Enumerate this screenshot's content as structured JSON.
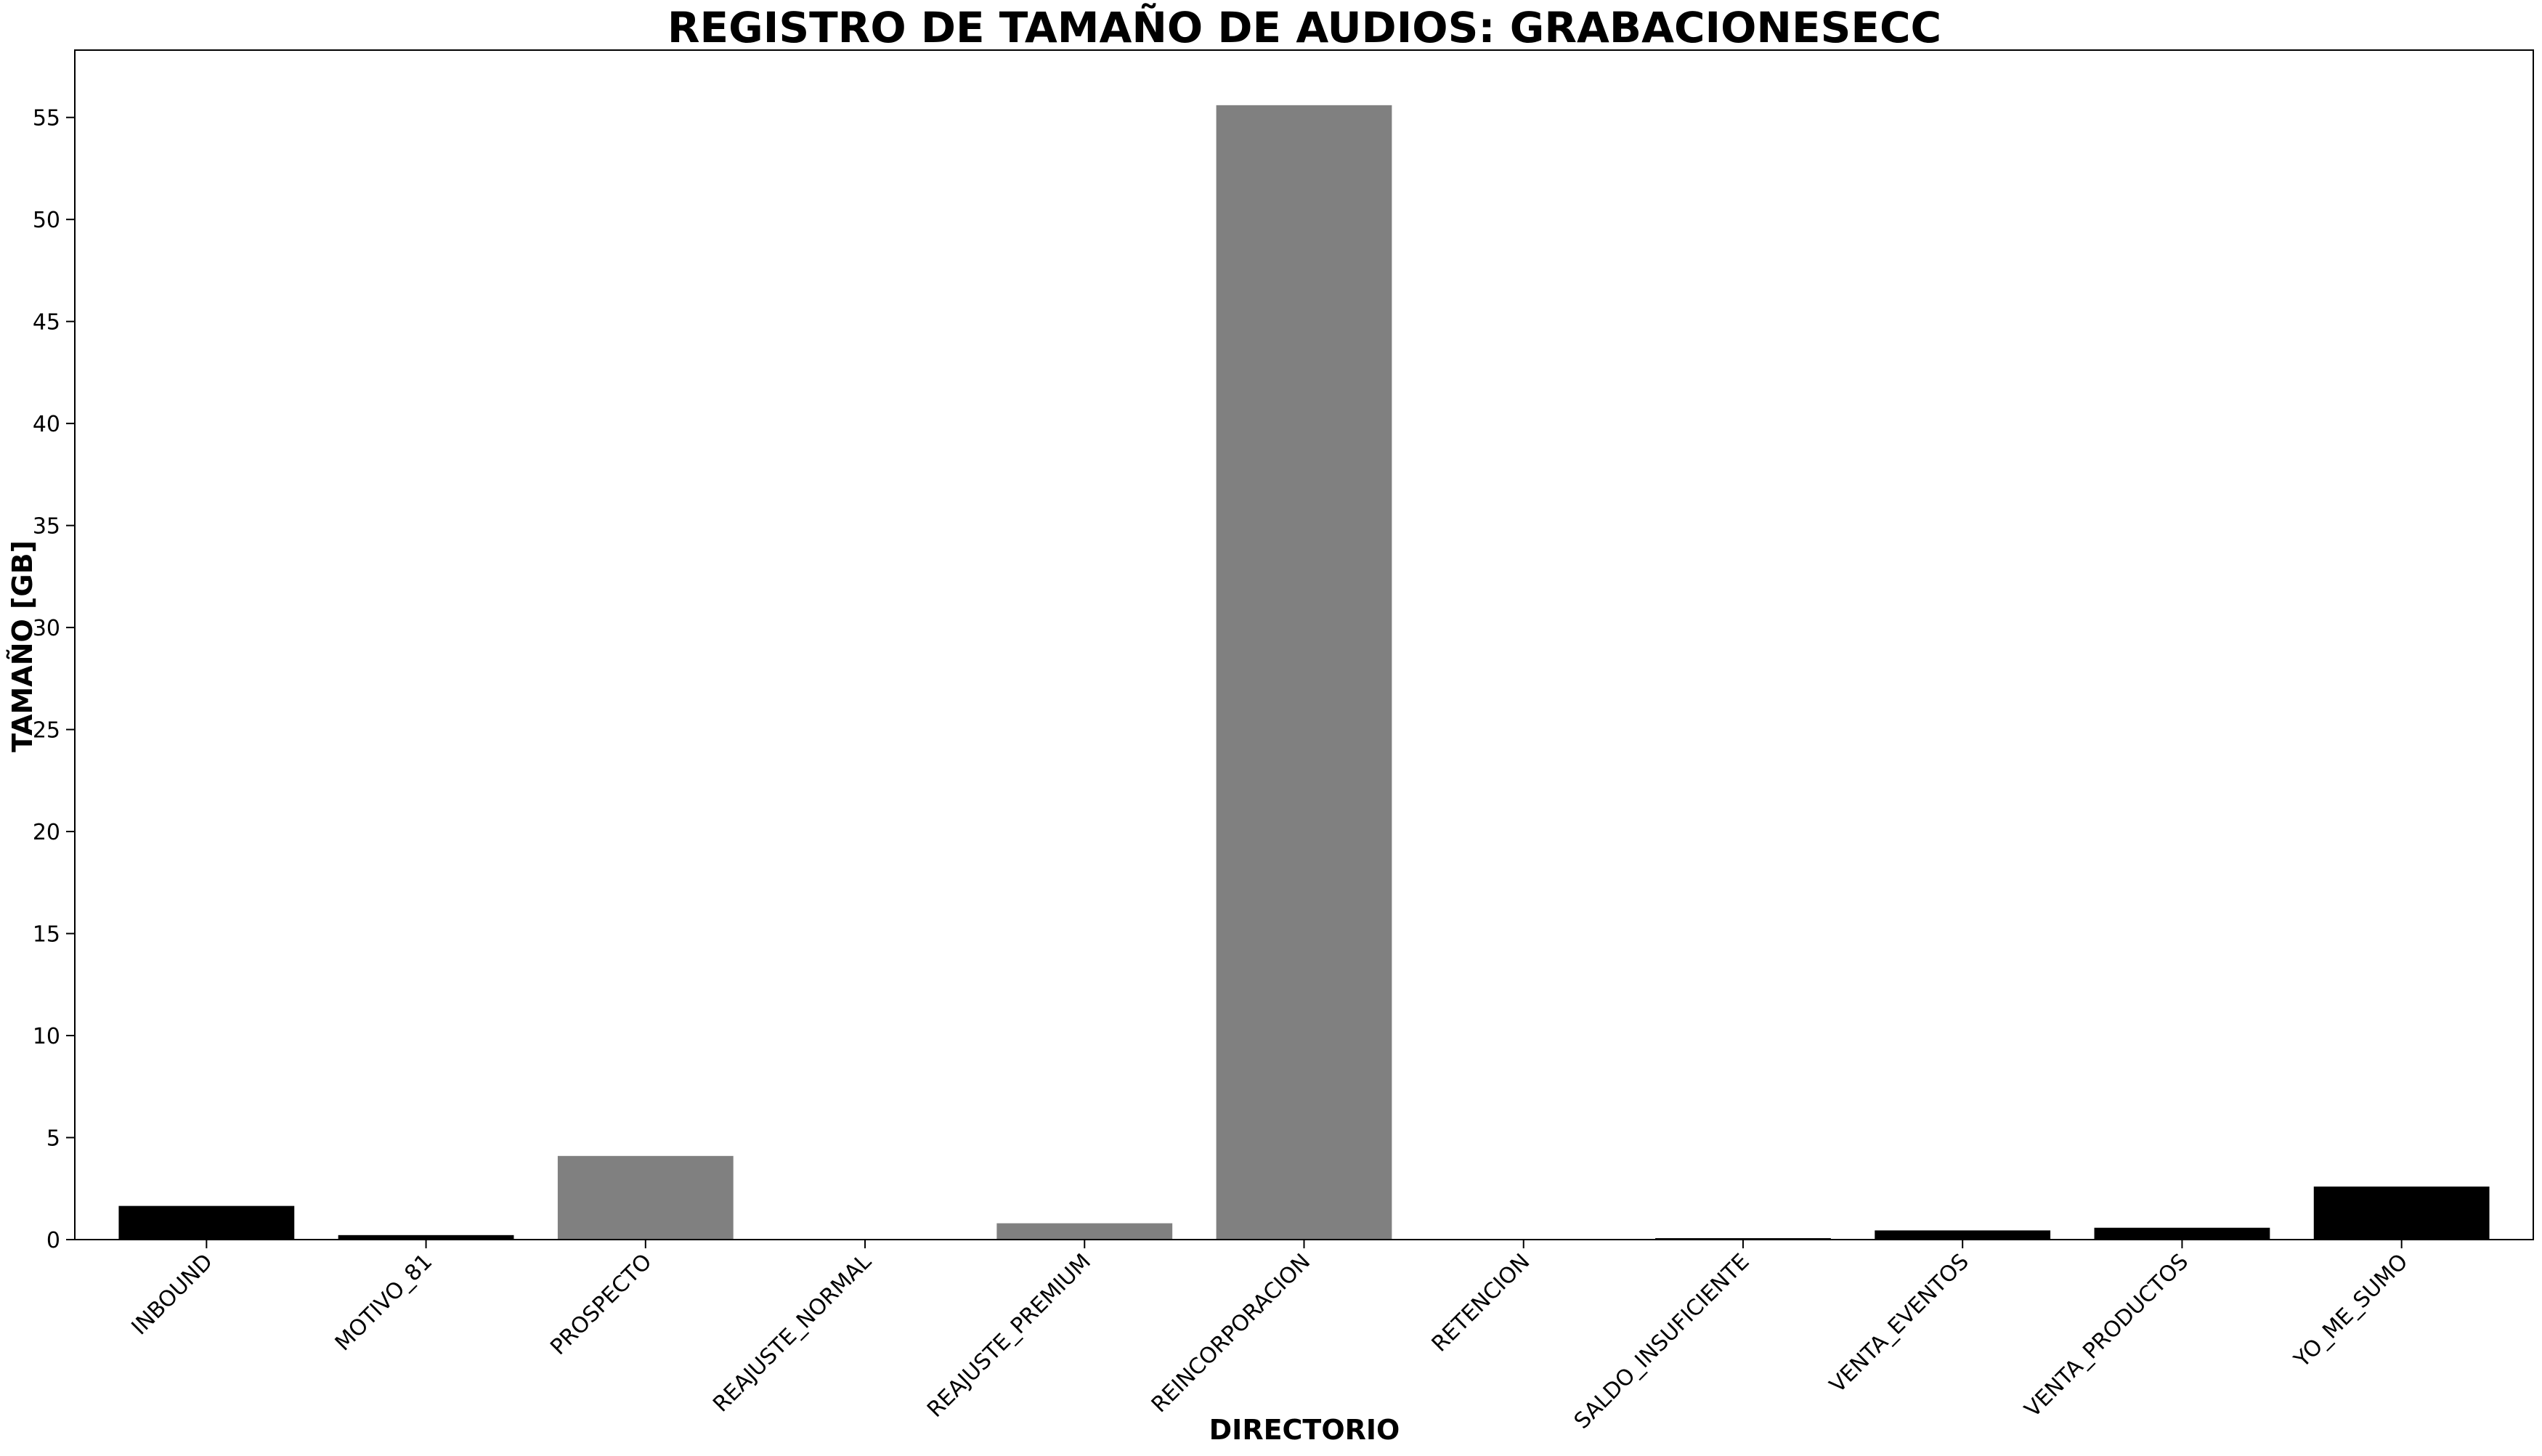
{
  "colors": {
    "bar_gray": "#808080",
    "bar_black": "#000000",
    "axis": "#000000",
    "background": "#ffffff"
  },
  "chart_data": {
    "type": "bar",
    "title": "REGISTRO DE TAMAÑO DE AUDIOS: GRABACIONESECC",
    "xlabel": "DIRECTORIO",
    "ylabel": "TAMAÑO [GB]",
    "ylim": [
      0,
      58.3
    ],
    "yticks": [
      0,
      5,
      10,
      15,
      20,
      25,
      30,
      35,
      40,
      45,
      50,
      55
    ],
    "categories": [
      "INBOUND",
      "MOTIVO_81",
      "PROSPECTO",
      "REAJUSTE_NORMAL",
      "REAJUSTE_PREMIUM",
      "REINCORPORACION",
      "RETENCION",
      "SALDO_INSUFICIENTE",
      "VENTA_EVENTOS",
      "VENTA_PRODUCTOS",
      "YO_ME_SUMO"
    ],
    "values": [
      1.65,
      0.22,
      4.1,
      0.0,
      0.8,
      55.6,
      0.0,
      0.07,
      0.45,
      0.58,
      2.6
    ],
    "bar_colors": [
      "black",
      "black",
      "gray",
      "gray",
      "gray",
      "gray",
      "black",
      "black",
      "black",
      "black",
      "black"
    ]
  }
}
